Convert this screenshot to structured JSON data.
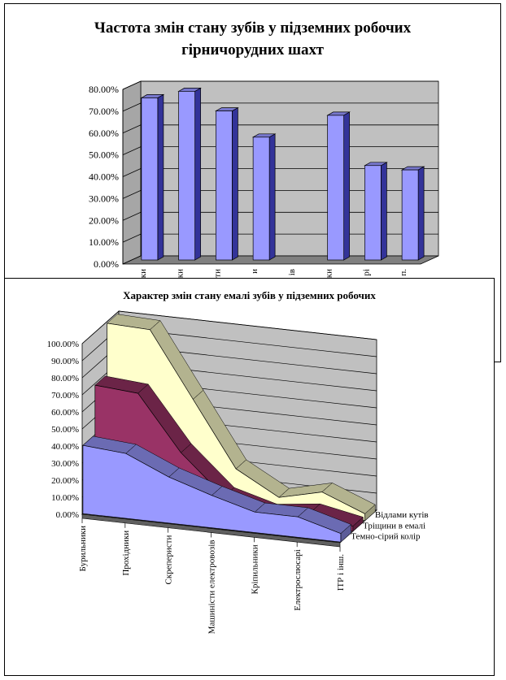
{
  "charts_meta": {
    "chart1_title": "Частота змін стану зубів у підземних робочих гірничорудних шахт",
    "chart2_title": "Характер змін стану емалі зубів у підземних робочих"
  },
  "chart_data": [
    {
      "type": "bar",
      "title": "Частота змін стану зубів у підземних робочих гірничорудних шахт",
      "categories": [
        "ки",
        "ки",
        "ти",
        "и",
        "ів",
        "ки",
        "рі",
        "п."
      ],
      "values": [
        75,
        78,
        69,
        57,
        null,
        67,
        44,
        42
      ],
      "bar_values": [
        75,
        78,
        69,
        57,
        67,
        44,
        42
      ],
      "tick_labels_shown": [
        "ки",
        "ки",
        "ти",
        "и",
        "ів",
        "ки",
        "рі",
        "п."
      ],
      "ylim": [
        0,
        80
      ],
      "yticks": [
        "0.00%",
        "10.00%",
        "20.00%",
        "30.00%",
        "40.00%",
        "50.00%",
        "60.00%",
        "70.00%",
        "80.00%"
      ],
      "grid": true,
      "colors": {
        "bar": "#9999ff",
        "bar_dark": "#333399",
        "wall": "#c0c0c0",
        "floor": "#808080"
      }
    },
    {
      "type": "area",
      "title": "Характер змін стану емалі зубів у підземних робочих",
      "categories": [
        "Бурильники",
        "Прохідники",
        "Скреперисти",
        "Машиністи електровозів",
        "Кріпильники",
        "Електрослюсарі",
        "ІТР і інш."
      ],
      "series": [
        {
          "name": "Темно-сірий колір",
          "values": [
            40,
            38,
            27,
            19,
            12,
            12,
            5
          ],
          "color": "#9999ff"
        },
        {
          "name": "Тріщини в емалі",
          "values": [
            69,
            67,
            35,
            12,
            5,
            8,
            3
          ],
          "color": "#993366"
        },
        {
          "name": "Відлами кутів",
          "values": [
            99,
            98,
            60,
            22,
            8,
            14,
            4
          ],
          "color": "#ffffcc"
        }
      ],
      "ylim": [
        0,
        100
      ],
      "yticks": [
        "0.00%",
        "10.00%",
        "20.00%",
        "30.00%",
        "40.00%",
        "50.00%",
        "60.00%",
        "70.00%",
        "80.00%",
        "90.00%",
        "100.00%"
      ],
      "grid": true,
      "legend": "right"
    }
  ]
}
